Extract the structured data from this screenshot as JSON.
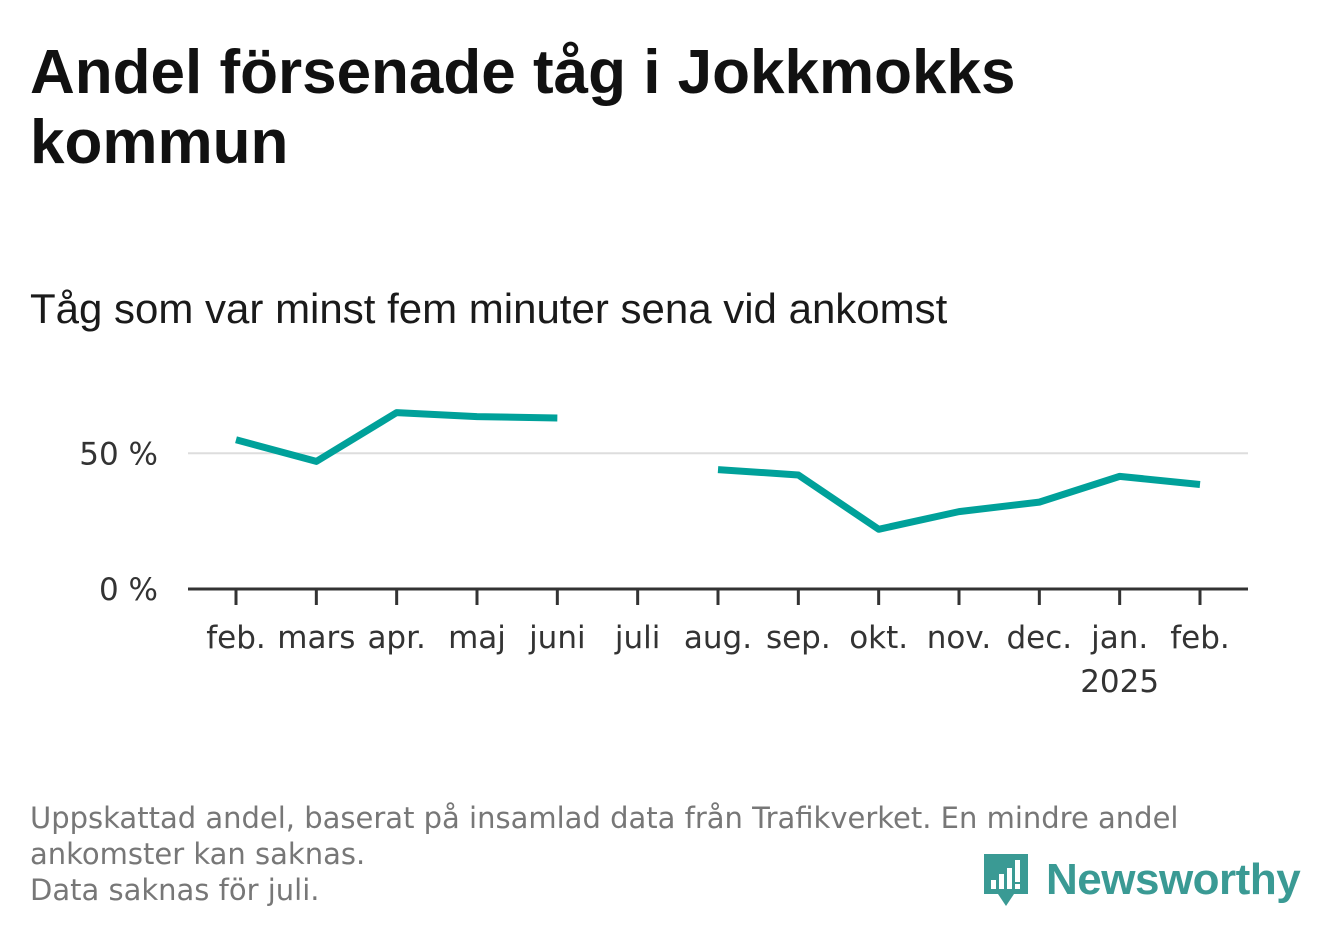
{
  "title": "Andel försenade tåg i Jokkmokks kommun",
  "subtitle": "Tåg som var minst fem minuter sena vid ankomst",
  "footnote": {
    "line1": "Uppskattad andel, baserat på insamlad data från Trafikverket. En mindre andel",
    "line2": "ankomster kan saknas.",
    "line3": "Data saknas för juli."
  },
  "brand": {
    "name": "Newsworthy",
    "color": "#3a9a94",
    "icon": "newsworthy-bar-chart-logo-icon"
  },
  "chart_data": {
    "type": "line",
    "categories": [
      "feb.",
      "mars",
      "apr.",
      "maj",
      "juni",
      "juli",
      "aug.",
      "sep.",
      "okt.",
      "nov.",
      "dec.",
      "jan.",
      "feb."
    ],
    "year_labels": [
      "",
      "",
      "",
      "",
      "",
      "",
      "",
      "",
      "",
      "",
      "",
      "2025",
      ""
    ],
    "series": [
      {
        "values": [
          55,
          47,
          65,
          63.5,
          63,
          null,
          44,
          42,
          22,
          28.5,
          32,
          41.5,
          38.5
        ],
        "color": "#00a19a"
      }
    ],
    "y_ticks": [
      0,
      50
    ],
    "y_tick_labels": [
      "0 %",
      "50 %"
    ],
    "ylim": [
      0,
      70
    ],
    "grid": true,
    "legend": "none"
  }
}
